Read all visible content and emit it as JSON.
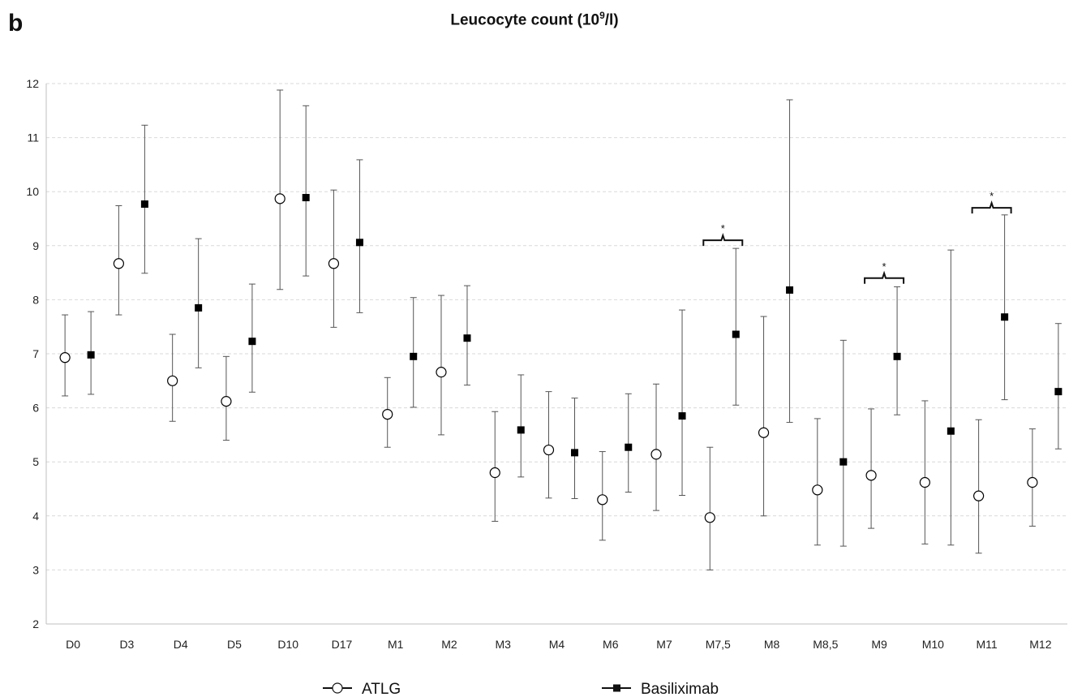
{
  "panel_letter": "b",
  "chart_data": {
    "type": "scatter",
    "title_main": "Leucocyte count (10",
    "title_sup": "9",
    "title_end": "/l)",
    "xlabel": "",
    "ylabel": "",
    "ylim": [
      2,
      12
    ],
    "yticks": [
      2,
      3,
      4,
      5,
      6,
      7,
      8,
      9,
      10,
      11,
      12
    ],
    "grid": "horizontal dashed",
    "legend_position": "bottom",
    "categories": [
      "D0",
      "D3",
      "D4",
      "D5",
      "D10",
      "D17",
      "M1",
      "M2",
      "M3",
      "M4",
      "M6",
      "M7",
      "M7,5",
      "M8",
      "M8,5",
      "M9",
      "M10",
      "M11",
      "M12"
    ],
    "series": [
      {
        "name": "ATLG",
        "marker": "open-circle",
        "color": "#000000",
        "values": [
          6.93,
          8.67,
          6.5,
          6.12,
          9.87,
          8.67,
          5.88,
          6.66,
          4.8,
          5.22,
          4.3,
          5.14,
          3.97,
          5.54,
          4.48,
          4.75,
          4.62,
          4.37,
          4.62
        ],
        "lower": [
          6.22,
          7.72,
          5.75,
          5.4,
          8.19,
          7.49,
          5.27,
          5.5,
          3.9,
          4.33,
          3.55,
          4.1,
          3.0,
          4.0,
          3.46,
          3.77,
          3.48,
          3.31,
          3.81
        ],
        "upper": [
          7.72,
          9.74,
          7.36,
          6.95,
          11.88,
          10.03,
          6.56,
          8.08,
          5.93,
          6.3,
          5.19,
          6.44,
          5.27,
          7.69,
          5.8,
          5.98,
          6.13,
          5.78,
          5.61
        ]
      },
      {
        "name": "Basiliximab",
        "marker": "filled-square",
        "color": "#000000",
        "values": [
          6.98,
          9.77,
          7.85,
          7.23,
          9.89,
          9.06,
          6.95,
          7.29,
          5.59,
          5.17,
          5.27,
          5.85,
          7.36,
          8.18,
          5.0,
          6.95,
          5.57,
          7.68,
          6.3
        ],
        "lower": [
          6.25,
          8.49,
          6.74,
          6.29,
          8.44,
          7.76,
          6.01,
          6.42,
          4.72,
          4.32,
          4.44,
          4.38,
          6.05,
          5.73,
          3.44,
          5.87,
          3.46,
          6.15,
          5.24
        ],
        "upper": [
          7.78,
          11.23,
          9.13,
          8.29,
          11.59,
          10.59,
          8.04,
          8.26,
          6.61,
          6.18,
          6.26,
          7.81,
          8.95,
          11.7,
          7.25,
          8.24,
          8.92,
          9.57,
          7.56
        ]
      }
    ],
    "annotations": [
      {
        "category": "M7,5",
        "text": "*",
        "y": 9.1
      },
      {
        "category": "M9",
        "text": "*",
        "y": 8.4
      },
      {
        "category": "M11",
        "text": "*",
        "y": 9.7
      }
    ]
  }
}
